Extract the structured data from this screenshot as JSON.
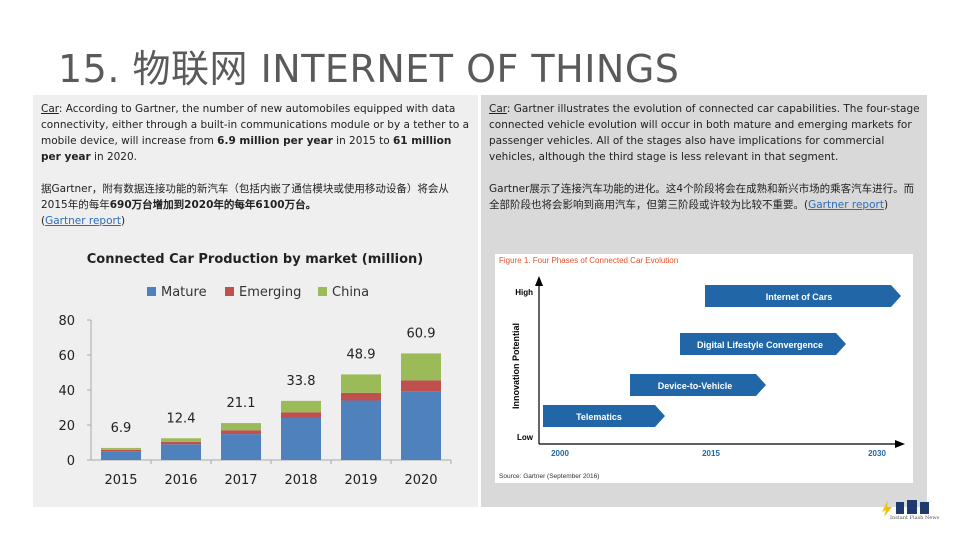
{
  "title": "15. 物联网 INTERNET OF THINGS",
  "left": {
    "label": "Car",
    "p1_a": ": According to Gartner, the number of new automobiles equipped with data connectivity, either through a built-in communications module or by a tether to a mobile device, will increase from ",
    "p1_b": "6.9 million per year",
    "p1_c": " in 2015 to ",
    "p1_d": "61 million per year",
    "p1_e": " in 2020.",
    "p2_a": "据Gartner，附有数据连接功能的新汽车（包括内嵌了通信模块或使用移动设备）将会从2015年的每年",
    "p2_b": "690万台",
    "p2_c": "增加到2020年的每年",
    "p2_d": "6100万台。",
    "link_open": "(",
    "link_text": "Gartner report",
    "link_close": ")"
  },
  "right": {
    "label": "Car",
    "p1": ": Gartner illustrates the evolution of connected car capabilities. The four-stage connected vehicle evolution will occur in both mature and emerging markets for passenger vehicles. All of the stages also have implications for commercial vehicles, although the third stage is less relevant in that segment.",
    "p2": "Gartner展示了连接汽车功能的进化。这4个阶段将会在成熟和新兴市场的乘客汽车进行。而全部阶段也将会影响到商用汽车，但第三阶段或许较为比较不重要。",
    "link_open": "(",
    "link_text": "Gartner report",
    "link_close": ")"
  },
  "chart_data": {
    "type": "bar",
    "stacked": true,
    "title": "Connected Car Production by market (million)",
    "categories": [
      "2015",
      "2016",
      "2017",
      "2018",
      "2019",
      "2020"
    ],
    "series": [
      {
        "name": "Mature",
        "color": "#4f81bd",
        "values": [
          5.0,
          9.0,
          14.8,
          24.0,
          34.0,
          39.0
        ]
      },
      {
        "name": "Emerging",
        "color": "#c0504d",
        "values": [
          0.8,
          1.4,
          2.2,
          3.3,
          4.4,
          6.5
        ]
      },
      {
        "name": "China",
        "color": "#9bbb59",
        "values": [
          1.1,
          2.0,
          4.1,
          6.5,
          10.5,
          15.4
        ]
      }
    ],
    "totals": [
      "6.9",
      "12.4",
      "21.1",
      "33.8",
      "48.9",
      "60.9"
    ],
    "yticks": [
      "0",
      "20",
      "40",
      "60",
      "80"
    ],
    "ylim": [
      0,
      80
    ],
    "legend": "top"
  },
  "figure": {
    "title": "Figure 1. Four Phases of Connected Car Evolution",
    "ylabel": "Innovation Potential",
    "y_high": "High",
    "y_low": "Low",
    "x_ticks": [
      "2000",
      "2015",
      "2030"
    ],
    "phases": [
      "Internet of Cars",
      "Digital Lifestyle Convergence",
      "Device-to-Vehicle",
      "Telematics"
    ],
    "arrow_color": "#2167a8",
    "source": "Source: Gartner (September 2016)"
  },
  "logo": {
    "text": "Instant Flash News",
    "accent": "#f2c200"
  }
}
